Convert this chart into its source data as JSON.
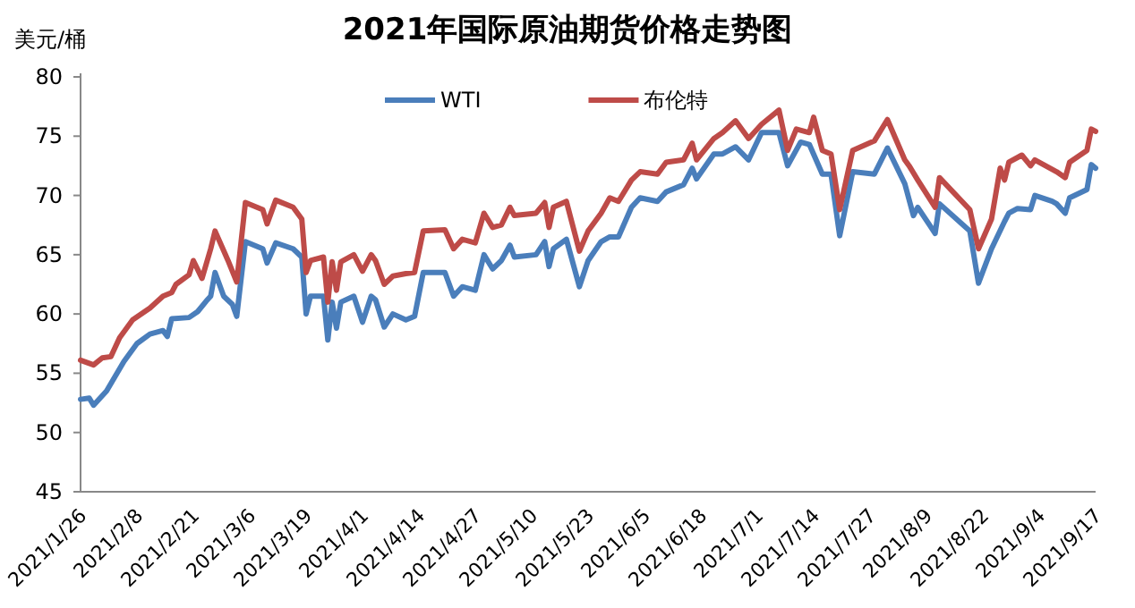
{
  "chart_data": {
    "type": "line",
    "title": "2021年国际原油期货价格走势图",
    "ylabel": "美元/桶",
    "legend": "top",
    "marker": "none",
    "line_style": "solid",
    "grid": false,
    "xlim": [
      "2021-01-26",
      "2021-09-17"
    ],
    "xticks": [
      {
        "value": "2021-01-26",
        "label": "2021/1/26"
      },
      {
        "value": "2021-02-08",
        "label": "2021/2/8"
      },
      {
        "value": "2021-02-21",
        "label": "2021/2/21"
      },
      {
        "value": "2021-03-06",
        "label": "2021/3/6"
      },
      {
        "value": "2021-03-19",
        "label": "2021/3/19"
      },
      {
        "value": "2021-04-01",
        "label": "2021/4/1"
      },
      {
        "value": "2021-04-14",
        "label": "2021/4/14"
      },
      {
        "value": "2021-04-27",
        "label": "2021/4/27"
      },
      {
        "value": "2021-05-10",
        "label": "2021/5/10"
      },
      {
        "value": "2021-05-23",
        "label": "2021/5/23"
      },
      {
        "value": "2021-06-05",
        "label": "2021/6/5"
      },
      {
        "value": "2021-06-18",
        "label": "2021/6/18"
      },
      {
        "value": "2021-07-01",
        "label": "2021/7/1"
      },
      {
        "value": "2021-07-14",
        "label": "2021/7/14"
      },
      {
        "value": "2021-07-27",
        "label": "2021/7/27"
      },
      {
        "value": "2021-08-09",
        "label": "2021/8/9"
      },
      {
        "value": "2021-08-22",
        "label": "2021/8/22"
      },
      {
        "value": "2021-09-04",
        "label": "2021/9/4"
      },
      {
        "value": "2021-09-17",
        "label": "2021/9/17"
      }
    ],
    "ylim": [
      45,
      80
    ],
    "yticks": [
      45,
      50,
      55,
      60,
      65,
      70,
      75,
      80
    ],
    "series": [
      {
        "name": "WTI",
        "color": "#4a7ebb",
        "x": [
          "2021-01-26",
          "2021-01-28",
          "2021-01-29",
          "2021-02-01",
          "2021-02-05",
          "2021-02-08",
          "2021-02-11",
          "2021-02-14",
          "2021-02-15",
          "2021-02-16",
          "2021-02-20",
          "2021-02-22",
          "2021-02-24",
          "2021-02-25",
          "2021-02-26",
          "2021-02-28",
          "2021-03-02",
          "2021-03-03",
          "2021-03-05",
          "2021-03-09",
          "2021-03-10",
          "2021-03-12",
          "2021-03-16",
          "2021-03-18",
          "2021-03-19",
          "2021-03-20",
          "2021-03-23",
          "2021-03-24",
          "2021-03-25",
          "2021-03-26",
          "2021-03-27",
          "2021-03-30",
          "2021-04-01",
          "2021-04-03",
          "2021-04-04",
          "2021-04-06",
          "2021-04-08",
          "2021-04-11",
          "2021-04-13",
          "2021-04-15",
          "2021-04-20",
          "2021-04-22",
          "2021-04-24",
          "2021-04-27",
          "2021-04-29",
          "2021-05-01",
          "2021-05-03",
          "2021-05-05",
          "2021-05-06",
          "2021-05-11",
          "2021-05-13",
          "2021-05-14",
          "2021-05-15",
          "2021-05-18",
          "2021-05-21",
          "2021-05-23",
          "2021-05-26",
          "2021-05-28",
          "2021-05-30",
          "2021-06-02",
          "2021-06-04",
          "2021-06-08",
          "2021-06-10",
          "2021-06-14",
          "2021-06-16",
          "2021-06-17",
          "2021-06-21",
          "2021-06-23",
          "2021-06-26",
          "2021-06-29",
          "2021-07-02",
          "2021-07-06",
          "2021-07-08",
          "2021-07-11",
          "2021-07-13",
          "2021-07-16",
          "2021-07-18",
          "2021-07-20",
          "2021-07-23",
          "2021-07-28",
          "2021-07-31",
          "2021-08-04",
          "2021-08-06",
          "2021-08-07",
          "2021-08-11",
          "2021-08-12",
          "2021-08-19",
          "2021-08-21",
          "2021-08-24",
          "2021-08-27",
          "2021-08-28",
          "2021-08-30",
          "2021-09-02",
          "2021-09-03",
          "2021-09-07",
          "2021-09-08",
          "2021-09-10",
          "2021-09-11",
          "2021-09-15",
          "2021-09-16",
          "2021-09-17"
        ],
        "values": [
          52.8,
          52.9,
          52.3,
          53.5,
          56.0,
          57.5,
          58.3,
          58.6,
          58.1,
          59.6,
          59.7,
          60.2,
          61.1,
          61.5,
          63.5,
          61.5,
          60.8,
          59.8,
          66.1,
          65.5,
          64.3,
          66.0,
          65.5,
          64.8,
          60.0,
          61.5,
          61.5,
          57.8,
          61.0,
          58.8,
          61.0,
          61.5,
          59.3,
          61.5,
          61.2,
          58.9,
          60.0,
          59.5,
          59.8,
          63.5,
          63.5,
          61.5,
          62.3,
          62.0,
          65.0,
          63.8,
          64.5,
          65.8,
          64.8,
          65.0,
          66.1,
          64.0,
          65.5,
          66.3,
          62.3,
          64.5,
          66.1,
          66.5,
          66.5,
          69.0,
          69.8,
          69.5,
          70.3,
          70.9,
          72.3,
          71.4,
          73.5,
          73.5,
          74.1,
          73.0,
          75.3,
          75.3,
          72.5,
          74.5,
          74.3,
          71.8,
          71.8,
          66.6,
          72.0,
          71.8,
          74.0,
          71.0,
          68.3,
          69.0,
          66.8,
          69.3,
          67.0,
          62.6,
          65.5,
          67.8,
          68.5,
          68.9,
          68.8,
          70.0,
          69.5,
          69.3,
          68.5,
          69.8,
          70.5,
          72.6,
          72.3
        ]
      },
      {
        "name": "布伦特",
        "color": "#be4b48",
        "x": [
          "2021-01-26",
          "2021-01-29",
          "2021-01-31",
          "2021-02-02",
          "2021-02-04",
          "2021-02-07",
          "2021-02-11",
          "2021-02-14",
          "2021-02-16",
          "2021-02-17",
          "2021-02-20",
          "2021-02-21",
          "2021-02-23",
          "2021-02-25",
          "2021-02-26",
          "2021-03-01",
          "2021-03-03",
          "2021-03-05",
          "2021-03-09",
          "2021-03-10",
          "2021-03-12",
          "2021-03-16",
          "2021-03-18",
          "2021-03-19",
          "2021-03-20",
          "2021-03-23",
          "2021-03-24",
          "2021-03-25",
          "2021-03-26",
          "2021-03-27",
          "2021-03-30",
          "2021-04-01",
          "2021-04-03",
          "2021-04-04",
          "2021-04-06",
          "2021-04-08",
          "2021-04-11",
          "2021-04-13",
          "2021-04-15",
          "2021-04-20",
          "2021-04-22",
          "2021-04-24",
          "2021-04-27",
          "2021-04-29",
          "2021-05-01",
          "2021-05-03",
          "2021-05-05",
          "2021-05-06",
          "2021-05-11",
          "2021-05-13",
          "2021-05-14",
          "2021-05-15",
          "2021-05-18",
          "2021-05-21",
          "2021-05-23",
          "2021-05-26",
          "2021-05-28",
          "2021-05-30",
          "2021-06-02",
          "2021-06-04",
          "2021-06-08",
          "2021-06-10",
          "2021-06-14",
          "2021-06-16",
          "2021-06-17",
          "2021-06-21",
          "2021-06-23",
          "2021-06-26",
          "2021-06-29",
          "2021-07-02",
          "2021-07-06",
          "2021-07-08",
          "2021-07-10",
          "2021-07-13",
          "2021-07-14",
          "2021-07-16",
          "2021-07-18",
          "2021-07-20",
          "2021-07-23",
          "2021-07-28",
          "2021-07-31",
          "2021-08-04",
          "2021-08-05",
          "2021-08-07",
          "2021-08-11",
          "2021-08-12",
          "2021-08-19",
          "2021-08-21",
          "2021-08-24",
          "2021-08-26",
          "2021-08-27",
          "2021-08-28",
          "2021-08-31",
          "2021-09-02",
          "2021-09-03",
          "2021-09-08",
          "2021-09-10",
          "2021-09-11",
          "2021-09-15",
          "2021-09-16",
          "2021-09-17"
        ],
        "values": [
          56.1,
          55.7,
          56.3,
          56.4,
          58.0,
          59.5,
          60.5,
          61.5,
          61.8,
          62.5,
          63.3,
          64.5,
          63.0,
          65.5,
          67.0,
          64.5,
          62.7,
          69.4,
          68.8,
          67.6,
          69.6,
          69.0,
          68.0,
          63.5,
          64.5,
          64.8,
          61.0,
          64.4,
          62.0,
          64.4,
          65.0,
          63.6,
          65.0,
          64.5,
          62.5,
          63.2,
          63.4,
          63.5,
          67.0,
          67.1,
          65.5,
          66.3,
          66.0,
          68.5,
          67.3,
          67.5,
          69.0,
          68.3,
          68.5,
          69.4,
          67.3,
          69.0,
          69.5,
          65.3,
          67.0,
          68.5,
          69.8,
          69.5,
          71.3,
          72.0,
          71.8,
          72.8,
          73.0,
          74.4,
          73.0,
          74.8,
          75.3,
          76.3,
          74.8,
          76.0,
          77.2,
          73.8,
          75.6,
          75.3,
          76.6,
          73.8,
          73.5,
          68.8,
          73.8,
          74.6,
          76.4,
          73.0,
          72.5,
          71.3,
          69.0,
          71.5,
          68.8,
          65.5,
          68.0,
          72.3,
          71.3,
          72.8,
          73.4,
          72.5,
          73.0,
          72.0,
          71.5,
          72.8,
          73.8,
          75.6,
          75.4
        ]
      }
    ]
  }
}
